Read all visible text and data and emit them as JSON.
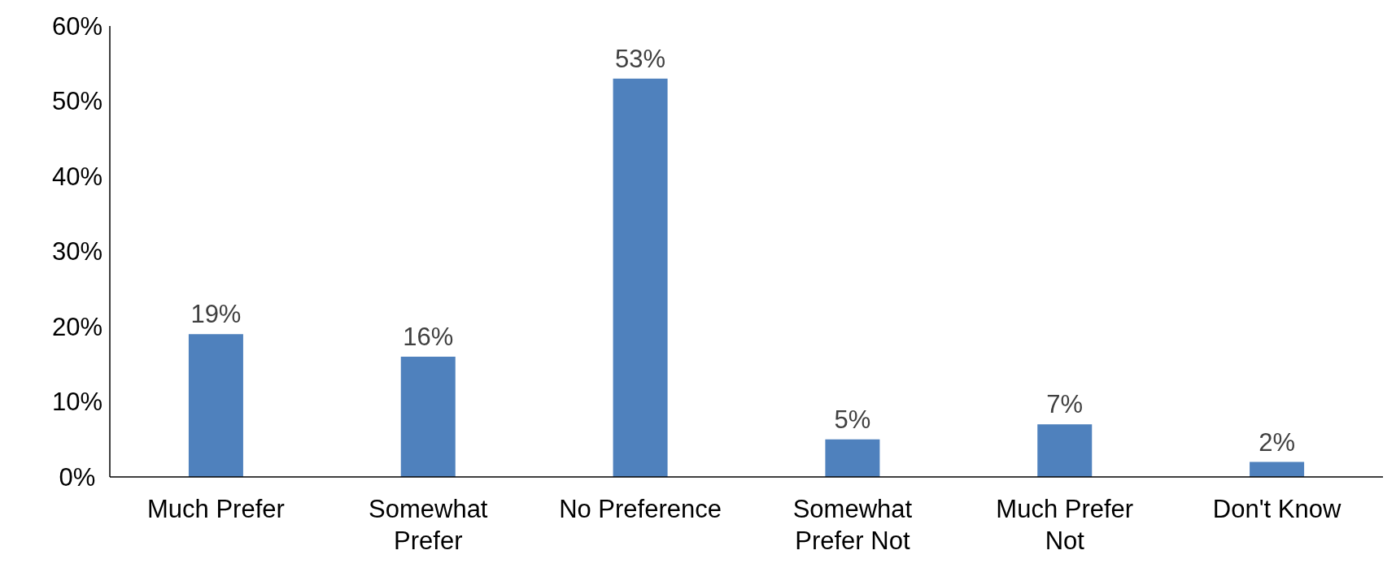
{
  "chart_data": {
    "type": "bar",
    "categories": [
      "Much Prefer",
      "Somewhat Prefer",
      "No Preference",
      "Somewhat Prefer Not",
      "Much Prefer Not",
      "Don't Know"
    ],
    "values": [
      19,
      16,
      53,
      5,
      7,
      2
    ],
    "color": "#4f81bd",
    "value_labels": [
      "19%",
      "16%",
      "53%",
      "5%",
      "7%",
      "2%"
    ],
    "ylim": [
      0,
      60
    ],
    "yticks": [
      {
        "value": 0,
        "label": "0%"
      },
      {
        "value": 10,
        "label": "10%"
      },
      {
        "value": 20,
        "label": "20%"
      },
      {
        "value": 30,
        "label": "30%"
      },
      {
        "value": 40,
        "label": "40%"
      },
      {
        "value": 50,
        "label": "50%"
      },
      {
        "value": 60,
        "label": "60%"
      }
    ],
    "grid": false
  }
}
